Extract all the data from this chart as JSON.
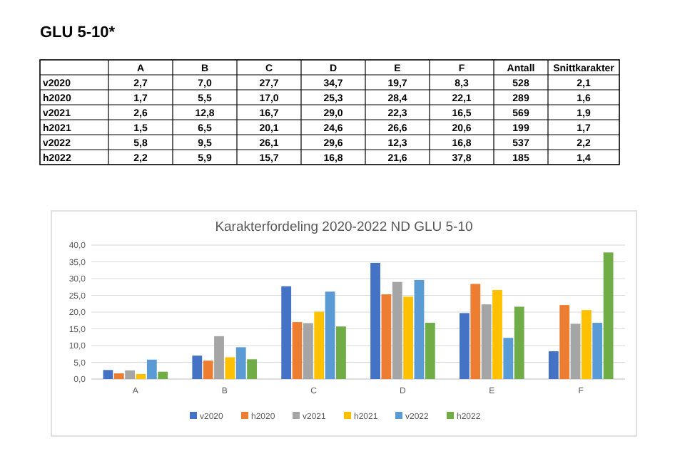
{
  "chart_data": [
    {
      "type": "other",
      "title": "GLU 5-10*",
      "categories": [
        "A",
        "B",
        "C",
        "D",
        "E",
        "F",
        "Antall",
        "Snittkarakter"
      ],
      "y_categories": [
        "v2020",
        "h2020",
        "v2021",
        "h2021",
        "v2022",
        "h2022"
      ],
      "cell_labels": [
        [
          "2,7",
          "7,0",
          "27,7",
          "34,7",
          "19,7",
          "8,3",
          "528",
          "2,1"
        ],
        [
          "1,7",
          "5,5",
          "17,0",
          "25,3",
          "28,4",
          "22,1",
          "289",
          "1,6"
        ],
        [
          "2,6",
          "12,8",
          "16,7",
          "29,0",
          "22,3",
          "16,5",
          "569",
          "1,9"
        ],
        [
          "1,5",
          "6,5",
          "20,1",
          "24,6",
          "26,6",
          "20,6",
          "199",
          "1,7"
        ],
        [
          "5,8",
          "9,5",
          "26,1",
          "29,6",
          "12,3",
          "16,8",
          "537",
          "2,2"
        ],
        [
          "2,2",
          "5,9",
          "15,7",
          "16,8",
          "21,6",
          "37,8",
          "185",
          "1,4"
        ]
      ]
    },
    {
      "type": "bar",
      "title": "Karakterfordeling 2020-2022 ND GLU 5-10",
      "categories": [
        "A",
        "B",
        "C",
        "D",
        "E",
        "F"
      ],
      "ylim": [
        0,
        40
      ],
      "yticks": [
        {
          "value": 0,
          "label": "0,0"
        },
        {
          "value": 5,
          "label": "5,0"
        },
        {
          "value": 10,
          "label": "10,0"
        },
        {
          "value": 15,
          "label": "15,0"
        },
        {
          "value": 20,
          "label": "20,0"
        },
        {
          "value": 25,
          "label": "25,0"
        },
        {
          "value": 30,
          "label": "30,0"
        },
        {
          "value": 35,
          "label": "35,0"
        },
        {
          "value": 40,
          "label": "40,0"
        }
      ],
      "grid": "y",
      "legend": "bottom",
      "series": [
        {
          "name": "v2020",
          "color": "#4472c4",
          "values": [
            2.7,
            7.0,
            27.7,
            34.7,
            19.7,
            8.3
          ]
        },
        {
          "name": "h2020",
          "color": "#ed7d31",
          "values": [
            1.7,
            5.5,
            17.0,
            25.3,
            28.4,
            22.1
          ]
        },
        {
          "name": "v2021",
          "color": "#a5a5a5",
          "values": [
            2.6,
            12.8,
            16.7,
            29.0,
            22.3,
            16.5
          ]
        },
        {
          "name": "h2021",
          "color": "#ffc000",
          "values": [
            1.5,
            6.5,
            20.1,
            24.6,
            26.6,
            20.6
          ]
        },
        {
          "name": "v2022",
          "color": "#5b9bd5",
          "values": [
            5.8,
            9.5,
            26.1,
            29.6,
            12.3,
            16.8
          ]
        },
        {
          "name": "h2022",
          "color": "#70ad47",
          "values": [
            2.2,
            5.9,
            15.7,
            16.8,
            21.6,
            37.8
          ]
        }
      ]
    }
  ]
}
